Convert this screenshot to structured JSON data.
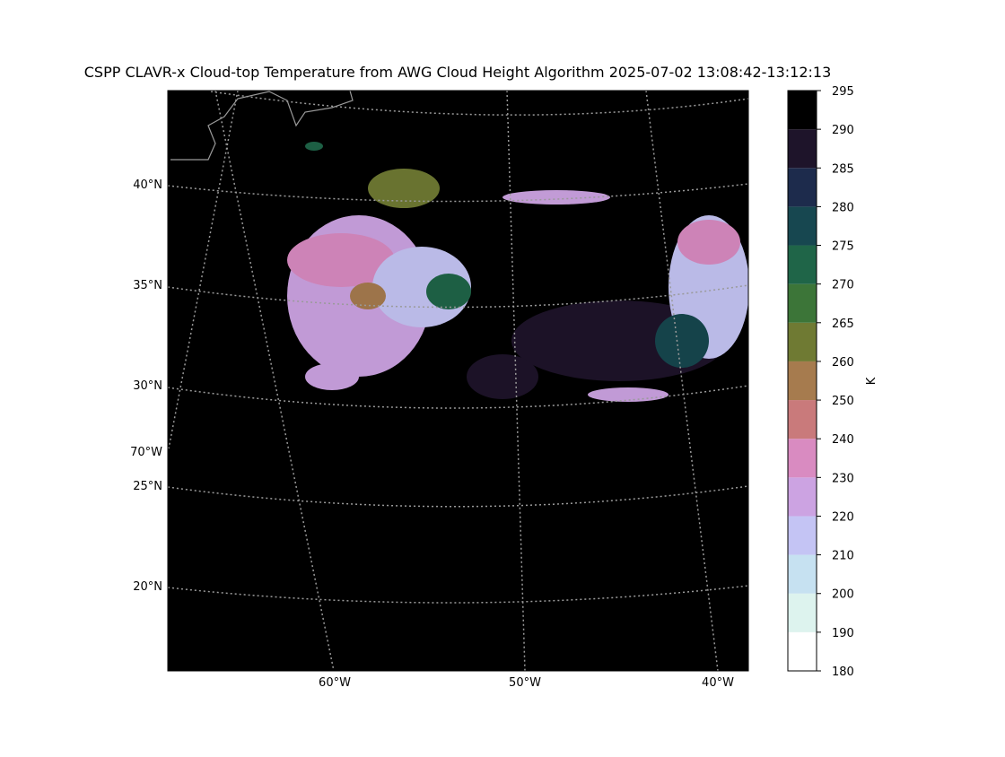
{
  "title": "CSPP CLAVR-x Cloud-top Temperature from AWG Cloud Height Algorithm 2025-07-02 13:08:42-13:12:13",
  "map": {
    "lat_labels": [
      "40°N",
      "35°N",
      "30°N",
      "25°N",
      "20°N"
    ],
    "lon_left_label": "70°W",
    "lon_labels": [
      "60°W",
      "50°W",
      "40°W"
    ]
  },
  "colorbar": {
    "label": "K",
    "ticks": [
      180,
      190,
      200,
      210,
      220,
      230,
      240,
      250,
      260,
      265,
      270,
      275,
      280,
      285,
      290,
      295
    ],
    "colors": [
      "#ffffff",
      "#ddf3ee",
      "#c6e1f1",
      "#c4c4f4",
      "#cca3e2",
      "#d98bc1",
      "#c97a7b",
      "#a67b4e",
      "#6f7a33",
      "#3c7538",
      "#1f6548",
      "#174750",
      "#1d2b4c",
      "#1e142a",
      "#000000"
    ]
  }
}
